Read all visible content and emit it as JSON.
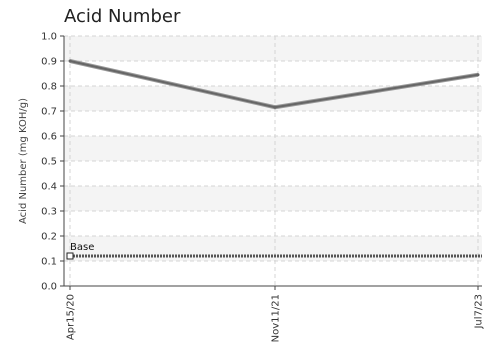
{
  "chart_data": {
    "type": "line",
    "title": "Acid Number",
    "xlabel": "",
    "ylabel": "Acid Number (mg KOH/g)",
    "categories": [
      "Apr15/20",
      "Nov11/21",
      "Jul7/23"
    ],
    "ylim": [
      0,
      1.0
    ],
    "yticks": [
      "0.0",
      "0.1",
      "0.2",
      "0.3",
      "0.4",
      "0.5",
      "0.6",
      "0.7",
      "0.8",
      "0.9",
      "1.0"
    ],
    "grid": true,
    "series": [
      {
        "values": [
          0.9,
          0.715,
          0.845
        ],
        "color": "#666666"
      }
    ],
    "baseline": {
      "label": "Base",
      "value": 0.12,
      "color": "#555555"
    }
  }
}
